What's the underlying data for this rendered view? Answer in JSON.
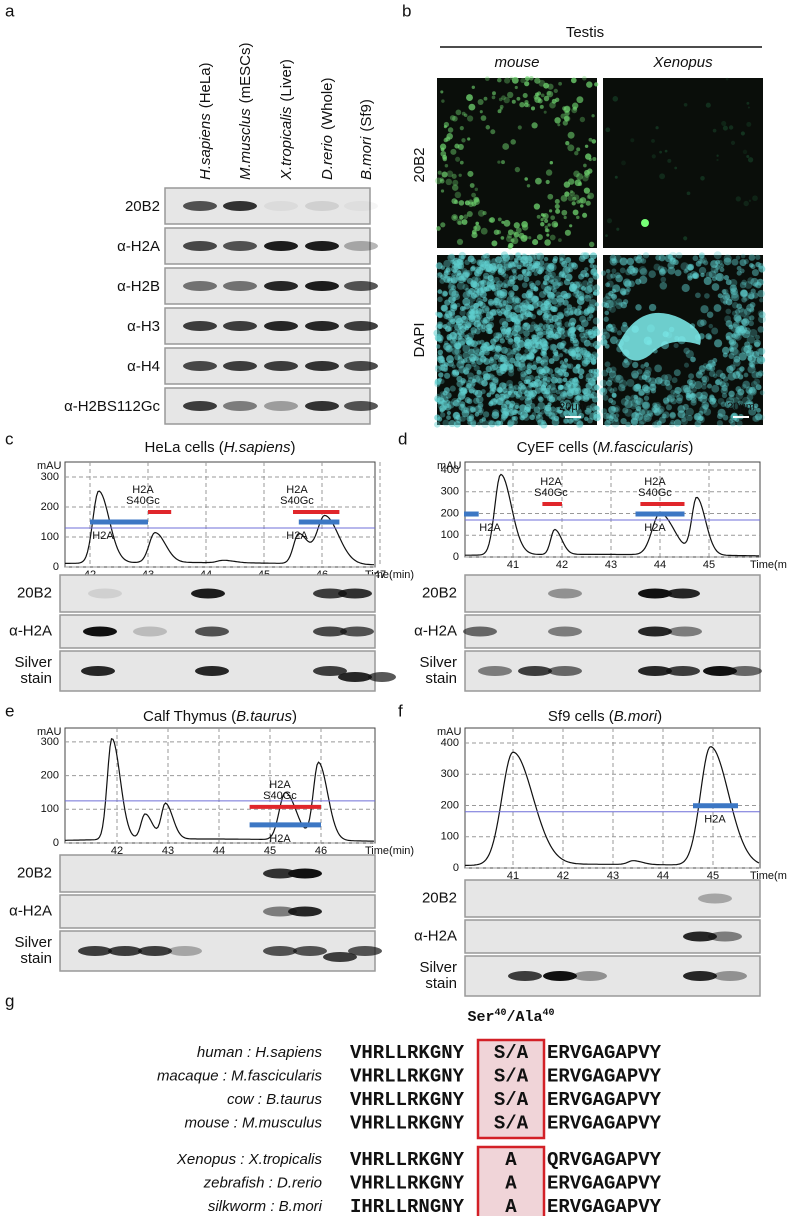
{
  "panel_a": {
    "label": "a",
    "columns": [
      {
        "species": "H.sapiens",
        "source": "(HeLa)"
      },
      {
        "species": "M.musclus",
        "source": "(mESCs)"
      },
      {
        "species": "X.tropicalis",
        "source": "(Liver)"
      },
      {
        "species": "D.rerio",
        "source": "(Whole)"
      },
      {
        "species": "B.mori",
        "source": "(Sf9)"
      }
    ],
    "rows": [
      "20B2",
      "α-H2A",
      "α-H2B",
      "α-H3",
      "α-H4",
      "α-H2BS112Gc"
    ]
  },
  "panel_b": {
    "label": "b",
    "title": "Testis",
    "columns": [
      "mouse",
      "Xenopus"
    ],
    "rows": [
      "20B2",
      "DAPI"
    ],
    "scale_bar": "20μm"
  },
  "panel_c": {
    "label": "c",
    "title": "HeLa cells (",
    "species": "H.sapiens",
    "title_end": ")",
    "y_unit": "mAU",
    "yticks": [
      0,
      100,
      200,
      300
    ],
    "xticks": [
      42,
      43,
      44,
      45,
      46,
      47
    ],
    "x_unit": "Time(min)",
    "modified_label": [
      "H2A",
      "S40Gc"
    ],
    "unmodified_label": "H2A",
    "blot_rows": [
      [
        "20B2"
      ],
      [
        "α-H2A"
      ],
      [
        "Silver",
        "stain"
      ]
    ]
  },
  "panel_d": {
    "label": "d",
    "title": "CyEF cells (",
    "species": "M.fascicularis",
    "title_end": ")",
    "y_unit": "mAU",
    "yticks": [
      0,
      100,
      200,
      300,
      400
    ],
    "xticks": [
      41,
      42,
      43,
      44,
      45
    ],
    "x_unit": "Time(min)",
    "modified_label": [
      "H2A",
      "S40Gc"
    ],
    "unmodified_label": "H2A",
    "blot_rows": [
      [
        "20B2"
      ],
      [
        "α-H2A"
      ],
      [
        "Silver",
        "stain"
      ]
    ]
  },
  "panel_e": {
    "label": "e",
    "title": "Calf Thymus (",
    "species": "B.taurus",
    "title_end": ")",
    "y_unit": "mAU",
    "yticks": [
      0,
      100,
      200,
      300
    ],
    "xticks": [
      42,
      43,
      44,
      45,
      46
    ],
    "x_unit": "Time(min)",
    "modified_label": [
      "H2A",
      "S40Gc"
    ],
    "unmodified_label": "H2A",
    "blot_rows": [
      [
        "20B2"
      ],
      [
        "α-H2A"
      ],
      [
        "Silver",
        "stain"
      ]
    ]
  },
  "panel_f": {
    "label": "f",
    "title": "Sf9 cells (",
    "species": "B.mori",
    "title_end": ")",
    "y_unit": "mAU",
    "yticks": [
      0,
      100,
      200,
      300,
      400
    ],
    "xticks": [
      41,
      42,
      43,
      44,
      45
    ],
    "x_unit": "Time(min)",
    "unmodified_label": "H2A",
    "blot_rows": [
      [
        "20B2"
      ],
      [
        "α-H2A"
      ],
      [
        "Silver",
        "stain"
      ]
    ]
  },
  "panel_g": {
    "label": "g",
    "header": [
      "Ser",
      "40",
      "/Ala",
      "40"
    ],
    "groups": [
      [
        {
          "name": "human : H.sapiens",
          "left": "VHRLLRKGNY",
          "residue": "S/A",
          "right": "ERVGAGAPVY"
        },
        {
          "name": "macaque : M.fascicularis",
          "left": "VHRLLRKGNY",
          "residue": "S/A",
          "right": "ERVGAGAPVY"
        },
        {
          "name": "cow :  B.taurus",
          "left": "VHRLLRKGNY",
          "residue": "S/A",
          "right": "ERVGAGAPVY"
        },
        {
          "name": "mouse : M.musculus",
          "left": "VHRLLRKGNY",
          "residue": "S/A",
          "right": "ERVGAGAPVY"
        }
      ],
      [
        {
          "name": "Xenopus : X.tropicalis",
          "left": "VHRLLRKGNY",
          "residue": "A",
          "right": "QRVGAGAPVY"
        },
        {
          "name": "zebrafish : D.rerio",
          "left": "VHRLLRKGNY",
          "residue": "A",
          "right": "ERVGAGAPVY"
        },
        {
          "name": "silkworm : B.mori",
          "left": "IHRLLRNGNY",
          "residue": "A",
          "right": "ERVGAGAPVY"
        }
      ]
    ]
  }
}
